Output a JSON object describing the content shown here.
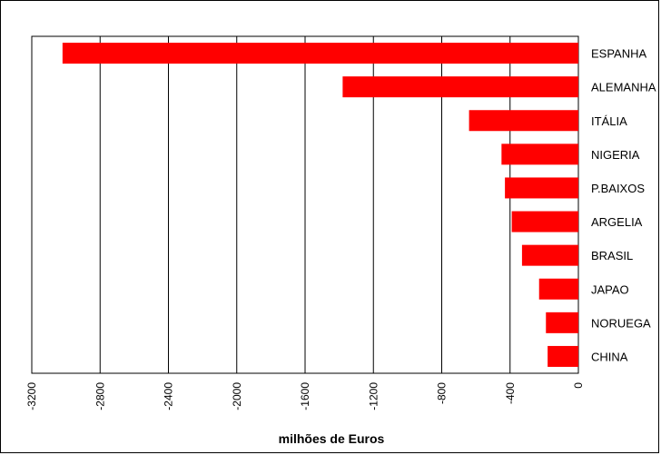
{
  "chart_data": {
    "type": "bar",
    "orientation": "horizontal",
    "categories": [
      "ESPANHA",
      "ALEMANHA",
      "ITÁLIA",
      "NIGERIA",
      "P.BAIXOS",
      "ARGELIA",
      "BRASIL",
      "JAPAO",
      "NORUEGA",
      "CHINA"
    ],
    "values": [
      -3020,
      -1380,
      -640,
      -450,
      -430,
      -390,
      -330,
      -230,
      -190,
      -180
    ],
    "xlabel": "milhões de Euros",
    "ylabel": "",
    "xlim": [
      -3200,
      0
    ],
    "ticks": [
      "-3200",
      "-2800",
      "-2400",
      "-2000",
      "-1600",
      "-1200",
      "-800",
      "-400",
      "0"
    ],
    "tick_values": [
      -3200,
      -2800,
      -2400,
      -2000,
      -1600,
      -1200,
      -800,
      -400,
      0
    ],
    "grid": "vertical",
    "bar_color": "#ff0000",
    "legend": "none"
  }
}
